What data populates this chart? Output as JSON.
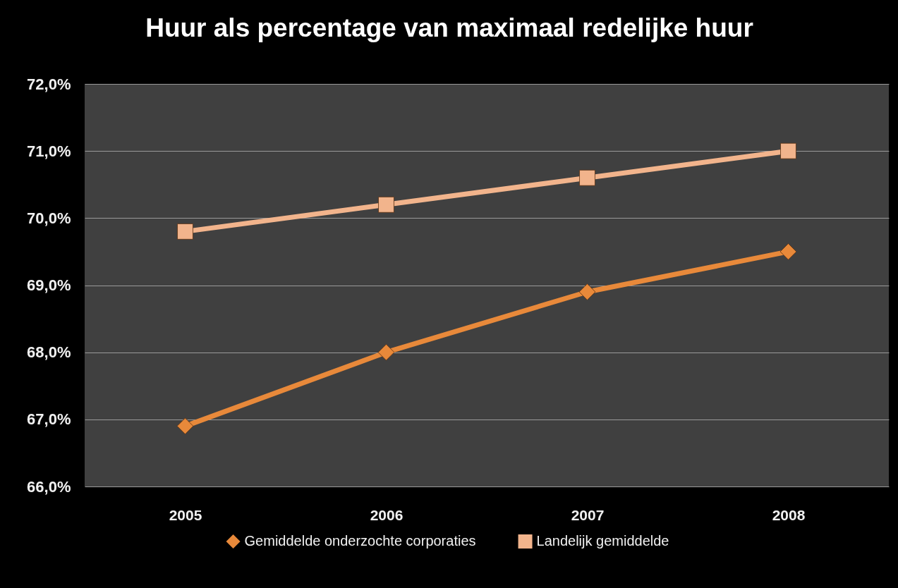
{
  "chart_data": {
    "type": "line",
    "title": "Huur als percentage van maximaal redelijke huur",
    "categories": [
      "2005",
      "2006",
      "2007",
      "2008"
    ],
    "series": [
      {
        "name": "Gemiddelde onderzochte corporaties",
        "color": "#e8893a",
        "marker": "diamond",
        "values": [
          66.9,
          68.0,
          68.9,
          69.5
        ]
      },
      {
        "name": "Landelijk gemiddelde",
        "color": "#f2b48c",
        "marker": "square",
        "values": [
          69.8,
          70.2,
          70.6,
          71.0
        ]
      }
    ],
    "ylim": [
      66,
      72
    ],
    "yticks": [
      {
        "value": 66,
        "label": "66,0%"
      },
      {
        "value": 67,
        "label": "67,0%"
      },
      {
        "value": 68,
        "label": "68,0%"
      },
      {
        "value": 69,
        "label": "69,0%"
      },
      {
        "value": 70,
        "label": "70,0%"
      },
      {
        "value": 71,
        "label": "71,0%"
      },
      {
        "value": 72,
        "label": "72,0%"
      }
    ],
    "grid": "y",
    "legend": "bottom"
  }
}
